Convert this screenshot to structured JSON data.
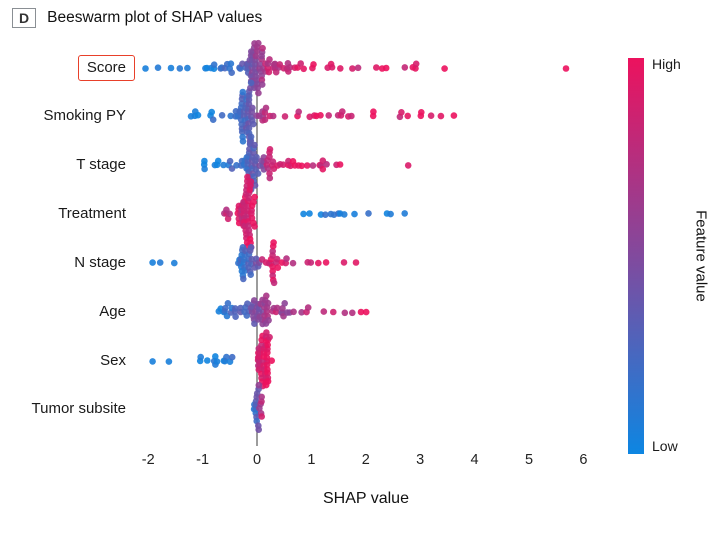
{
  "panel": {
    "label": "D",
    "title": "Beeswarm plot of SHAP values"
  },
  "chart_data": {
    "type": "scatter",
    "variant": "beeswarm",
    "title": "Beeswarm plot of SHAP values",
    "xlabel": "SHAP value",
    "xlim": [
      -2.5,
      6.2
    ],
    "xticks": [
      -2,
      -1,
      0,
      1,
      2,
      3,
      4,
      5,
      6
    ],
    "grid": false,
    "zero_line": true,
    "colorbar": {
      "label": "Feature value",
      "high_label": "High",
      "low_label": "Low",
      "high_color": "#ec125e",
      "low_color": "#0d86e2",
      "position": "right"
    },
    "annotations": {
      "highlighted_feature": "Score",
      "highlight_color": "#e8402a"
    },
    "features": [
      {
        "name": "Score",
        "clusters": [
          {
            "x0": -0.95,
            "x1": -0.35,
            "n": 12,
            "v0": 0.0,
            "v1": 0.3,
            "dist": "uniform"
          },
          {
            "x0": -0.35,
            "x1": 0.3,
            "n": 55,
            "v0": 0.2,
            "v1": 0.9,
            "dist": "center"
          },
          {
            "x0": 0.3,
            "x1": 1.7,
            "n": 22,
            "v0": 0.8,
            "v1": 1.0,
            "dist": "edge0"
          },
          {
            "x0": 1.7,
            "x1": 2.6,
            "n": 5,
            "v0": 0.85,
            "v1": 1.0,
            "dist": "uniform"
          },
          {
            "x0": 2.7,
            "x1": 3.5,
            "n": 5,
            "v0": 0.85,
            "v1": 1.0,
            "dist": "uniform"
          }
        ],
        "outliers": [
          [
            -2.05,
            0.05
          ],
          [
            -1.82,
            0.1
          ],
          [
            -1.58,
            0.05
          ],
          [
            -1.42,
            0.12
          ],
          [
            -1.28,
            0.08
          ],
          [
            5.68,
            1.0
          ]
        ]
      },
      {
        "name": "Smoking PY",
        "clusters": [
          {
            "x0": -1.25,
            "x1": -0.45,
            "n": 9,
            "v0": 0.0,
            "v1": 0.2,
            "dist": "uniform"
          },
          {
            "x0": -0.45,
            "x1": 0.05,
            "n": 50,
            "v0": 0.05,
            "v1": 0.55,
            "dist": "center"
          },
          {
            "x0": 0.1,
            "x1": 1.3,
            "n": 15,
            "v0": 0.75,
            "v1": 1.0,
            "dist": "edge0"
          },
          {
            "x0": 1.3,
            "x1": 2.15,
            "n": 8,
            "v0": 0.8,
            "v1": 1.0,
            "dist": "uniform"
          },
          {
            "x0": 2.3,
            "x1": 3.1,
            "n": 5,
            "v0": 0.85,
            "v1": 1.0,
            "dist": "uniform"
          }
        ],
        "outliers": [
          [
            3.2,
            0.9
          ],
          [
            3.38,
            0.95
          ],
          [
            3.62,
            1.0
          ]
        ]
      },
      {
        "name": "T stage",
        "clusters": [
          {
            "x0": -1.05,
            "x1": -0.35,
            "n": 11,
            "v0": 0.0,
            "v1": 0.25,
            "dist": "uniform"
          },
          {
            "x0": -0.35,
            "x1": 0.15,
            "n": 42,
            "v0": 0.1,
            "v1": 0.55,
            "dist": "center"
          },
          {
            "x0": 0.18,
            "x1": 0.95,
            "n": 22,
            "v0": 0.8,
            "v1": 1.0,
            "dist": "edge0"
          },
          {
            "x0": 0.95,
            "x1": 1.85,
            "n": 8,
            "v0": 0.8,
            "v1": 1.0,
            "dist": "uniform"
          }
        ],
        "outliers": [
          [
            2.78,
            0.92
          ]
        ]
      },
      {
        "name": "Treatment",
        "clusters": [
          {
            "x0": -0.62,
            "x1": -0.32,
            "n": 10,
            "v0": 0.75,
            "v1": 1.0,
            "dist": "edge1"
          },
          {
            "x0": -0.32,
            "x1": -0.02,
            "n": 50,
            "v0": 0.8,
            "v1": 1.0,
            "dist": "center"
          },
          {
            "x0": 0.75,
            "x1": 2.1,
            "n": 11,
            "v0": 0.0,
            "v1": 0.2,
            "dist": "uniform"
          },
          {
            "x0": 2.35,
            "x1": 2.85,
            "n": 3,
            "v0": 0.0,
            "v1": 0.15,
            "dist": "uniform"
          }
        ],
        "outliers": []
      },
      {
        "name": "N stage",
        "clusters": [
          {
            "x0": -0.4,
            "x1": 0.05,
            "n": 32,
            "v0": 0.05,
            "v1": 0.5,
            "dist": "center"
          },
          {
            "x0": 0.05,
            "x1": 0.5,
            "n": 18,
            "v0": 0.75,
            "v1": 1.0,
            "dist": "center"
          },
          {
            "x0": 0.5,
            "x1": 1.45,
            "n": 7,
            "v0": 0.8,
            "v1": 1.0,
            "dist": "uniform"
          }
        ],
        "outliers": [
          [
            -1.92,
            0.05
          ],
          [
            -1.78,
            0.1
          ],
          [
            -1.52,
            0.07
          ],
          [
            1.6,
            0.92
          ],
          [
            1.82,
            0.95
          ]
        ]
      },
      {
        "name": "Age",
        "clusters": [
          {
            "x0": -0.75,
            "x1": -0.3,
            "n": 14,
            "v0": 0.0,
            "v1": 0.35,
            "dist": "edge1"
          },
          {
            "x0": -0.3,
            "x1": 0.45,
            "n": 42,
            "v0": 0.25,
            "v1": 0.85,
            "dist": "center"
          },
          {
            "x0": 0.45,
            "x1": 1.6,
            "n": 13,
            "v0": 0.6,
            "v1": 1.0,
            "dist": "edge0"
          },
          {
            "x0": 1.6,
            "x1": 2.05,
            "n": 4,
            "v0": 0.7,
            "v1": 1.0,
            "dist": "uniform"
          }
        ],
        "outliers": []
      },
      {
        "name": "Sex",
        "clusters": [
          {
            "x0": -1.05,
            "x1": -0.45,
            "n": 12,
            "v0": 0.0,
            "v1": 0.15,
            "dist": "uniform"
          },
          {
            "x0": -0.02,
            "x1": 0.3,
            "n": 46,
            "v0": 0.85,
            "v1": 1.0,
            "dist": "center"
          }
        ],
        "outliers": [
          [
            -1.92,
            0.05
          ],
          [
            -1.62,
            0.06
          ]
        ]
      },
      {
        "name": "Tumor subsite",
        "clusters": [
          {
            "x0": -0.07,
            "x1": 0.13,
            "n": 20,
            "v0": 0.0,
            "v1": 1.0,
            "dist": "center"
          }
        ],
        "outliers": []
      }
    ]
  }
}
